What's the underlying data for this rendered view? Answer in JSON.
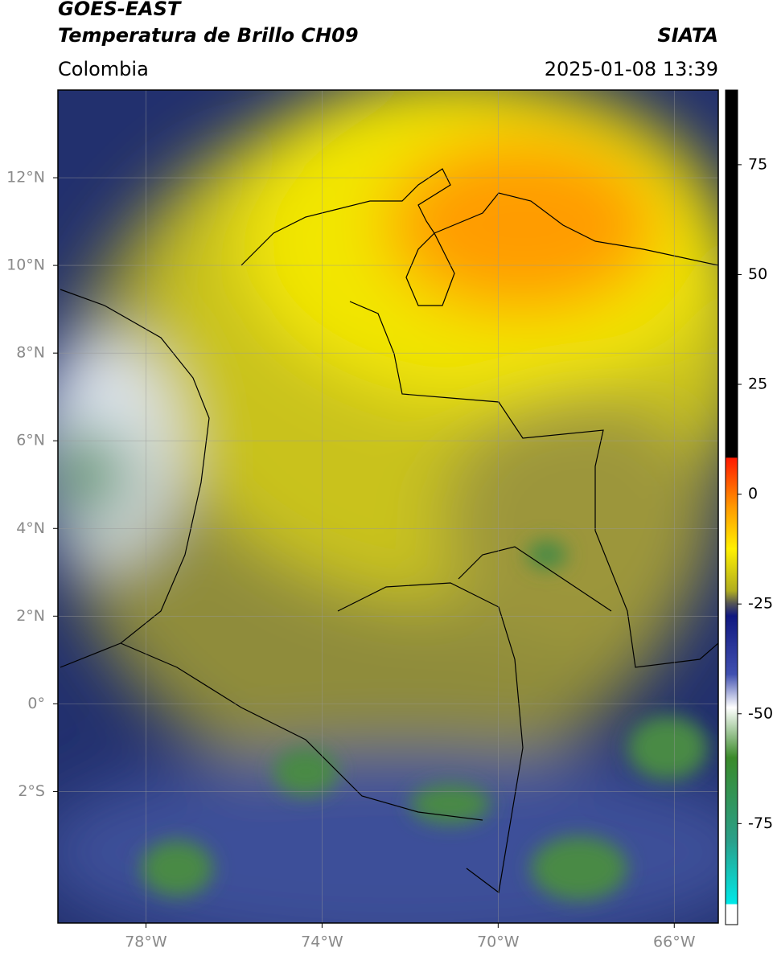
{
  "header": {
    "title": "GOES-EAST",
    "subtitle": "Temperatura de Brillo CH09",
    "region": "Colombia",
    "source": "SIATA",
    "datetime": "2025-01-08 13:39"
  },
  "map": {
    "lon_lim": [
      -80,
      -65
    ],
    "lat_lim": [
      -5,
      14
    ],
    "lon_ticks": [
      {
        "value": -78,
        "label": "78°W"
      },
      {
        "value": -74,
        "label": "74°W"
      },
      {
        "value": -70,
        "label": "70°W"
      },
      {
        "value": -66,
        "label": "66°W"
      }
    ],
    "lat_ticks": [
      {
        "value": 12,
        "label": "12°N"
      },
      {
        "value": 10,
        "label": "10°N"
      },
      {
        "value": 8,
        "label": "8°N"
      },
      {
        "value": 6,
        "label": "6°N"
      },
      {
        "value": 4,
        "label": "4°N"
      },
      {
        "value": 2,
        "label": "2°N"
      },
      {
        "value": 0,
        "label": "0°"
      },
      {
        "value": -2,
        "label": "2°S"
      }
    ]
  },
  "colorbar": {
    "lim": [
      -98,
      92
    ],
    "ticks": [
      75,
      50,
      25,
      0,
      -25,
      -50,
      -75
    ]
  }
}
